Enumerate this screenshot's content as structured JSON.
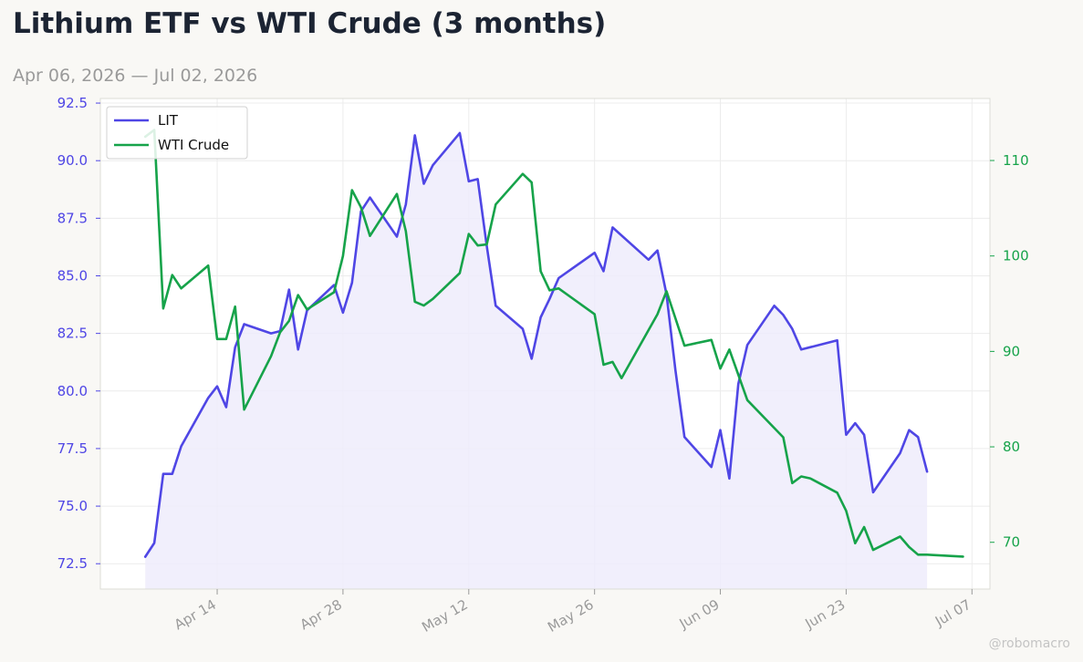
{
  "header": {
    "title": "Lithium ETF vs WTI Crude (3 months)",
    "subtitle": "Apr 06, 2026 — Jul 02, 2026"
  },
  "watermark": "@robomacro",
  "colors": {
    "lit": "#4f46e5",
    "lit_fill": "#eeecfc",
    "wti": "#16a34a",
    "background": "#f9f8f5",
    "plot_background": "#ffffff"
  },
  "chart_data": {
    "type": "line",
    "title": "Lithium ETF vs WTI Crude (3 months)",
    "subtitle": "Apr 06, 2026 — Jul 02, 2026",
    "grid": true,
    "legend_position": "top-left",
    "x_range": [
      "2026-04-01",
      "2026-07-09"
    ],
    "x_ticks": [
      "2026-04-14",
      "2026-04-28",
      "2026-05-12",
      "2026-05-26",
      "2026-06-09",
      "2026-06-23",
      "2026-07-07"
    ],
    "x_tick_labels": [
      "Apr 14",
      "Apr 28",
      "May 12",
      "May 26",
      "Jun 09",
      "Jun 23",
      "Jul 07"
    ],
    "y_left": {
      "range": [
        71.4,
        92.7
      ],
      "ticks": [
        72.5,
        75.0,
        77.5,
        80.0,
        82.5,
        85.0,
        87.5,
        90.0,
        92.5
      ],
      "tick_labels": [
        "72.5",
        "75.0",
        "77.5",
        "80.0",
        "82.5",
        "85.0",
        "87.5",
        "90.0",
        "92.5"
      ]
    },
    "y_right": {
      "range": [
        65.1,
        116.5
      ],
      "ticks": [
        70,
        80,
        90,
        100,
        110
      ],
      "tick_labels": [
        "70",
        "80",
        "90",
        "100",
        "110"
      ]
    },
    "series": [
      {
        "name": "LIT",
        "axis": "left",
        "color": "#4f46e5",
        "fill": true,
        "points": [
          [
            "2026-04-06",
            72.8
          ],
          [
            "2026-04-07",
            73.4
          ],
          [
            "2026-04-08",
            76.4
          ],
          [
            "2026-04-09",
            76.4
          ],
          [
            "2026-04-10",
            77.6
          ],
          [
            "2026-04-13",
            79.7
          ],
          [
            "2026-04-14",
            80.2
          ],
          [
            "2026-04-15",
            79.3
          ],
          [
            "2026-04-16",
            81.9
          ],
          [
            "2026-04-17",
            82.9
          ],
          [
            "2026-04-20",
            82.5
          ],
          [
            "2026-04-21",
            82.6
          ],
          [
            "2026-04-22",
            84.4
          ],
          [
            "2026-04-23",
            81.8
          ],
          [
            "2026-04-24",
            83.5
          ],
          [
            "2026-04-27",
            84.6
          ],
          [
            "2026-04-28",
            83.4
          ],
          [
            "2026-04-29",
            84.7
          ],
          [
            "2026-04-30",
            87.8
          ],
          [
            "2026-05-01",
            88.4
          ],
          [
            "2026-05-04",
            86.7
          ],
          [
            "2026-05-05",
            88.1
          ],
          [
            "2026-05-06",
            91.1
          ],
          [
            "2026-05-07",
            89.0
          ],
          [
            "2026-05-08",
            89.8
          ],
          [
            "2026-05-11",
            91.2
          ],
          [
            "2026-05-12",
            89.1
          ],
          [
            "2026-05-13",
            89.2
          ],
          [
            "2026-05-14",
            86.3
          ],
          [
            "2026-05-15",
            83.7
          ],
          [
            "2026-05-18",
            82.7
          ],
          [
            "2026-05-19",
            81.4
          ],
          [
            "2026-05-20",
            83.2
          ],
          [
            "2026-05-21",
            84.0
          ],
          [
            "2026-05-22",
            84.9
          ],
          [
            "2026-05-26",
            86.0
          ],
          [
            "2026-05-27",
            85.2
          ],
          [
            "2026-05-28",
            87.1
          ],
          [
            "2026-06-01",
            85.7
          ],
          [
            "2026-06-02",
            86.1
          ],
          [
            "2026-06-03",
            84.2
          ],
          [
            "2026-06-04",
            80.9
          ],
          [
            "2026-06-05",
            78.0
          ],
          [
            "2026-06-08",
            76.7
          ],
          [
            "2026-06-09",
            78.3
          ],
          [
            "2026-06-10",
            76.2
          ],
          [
            "2026-06-11",
            80.3
          ],
          [
            "2026-06-12",
            82.0
          ],
          [
            "2026-06-15",
            83.7
          ],
          [
            "2026-06-16",
            83.3
          ],
          [
            "2026-06-17",
            82.7
          ],
          [
            "2026-06-18",
            81.8
          ],
          [
            "2026-06-22",
            82.2
          ],
          [
            "2026-06-23",
            78.1
          ],
          [
            "2026-06-24",
            78.6
          ],
          [
            "2026-06-25",
            78.1
          ],
          [
            "2026-06-26",
            75.6
          ],
          [
            "2026-06-29",
            77.3
          ],
          [
            "2026-06-30",
            78.3
          ],
          [
            "2026-07-01",
            78.0
          ],
          [
            "2026-07-02",
            76.5
          ]
        ]
      },
      {
        "name": "WTI Crude",
        "axis": "right",
        "color": "#16a34a",
        "fill": false,
        "points": [
          [
            "2026-04-06",
            112.5
          ],
          [
            "2026-04-07",
            113.2
          ],
          [
            "2026-04-08",
            94.5
          ],
          [
            "2026-04-09",
            98.0
          ],
          [
            "2026-04-10",
            96.6
          ],
          [
            "2026-04-13",
            99.0
          ],
          [
            "2026-04-14",
            91.3
          ],
          [
            "2026-04-15",
            91.3
          ],
          [
            "2026-04-16",
            94.7
          ],
          [
            "2026-04-17",
            83.9
          ],
          [
            "2026-04-20",
            89.5
          ],
          [
            "2026-04-21",
            92.0
          ],
          [
            "2026-04-22",
            93.2
          ],
          [
            "2026-04-23",
            95.9
          ],
          [
            "2026-04-24",
            94.4
          ],
          [
            "2026-04-27",
            96.2
          ],
          [
            "2026-04-28",
            100.0
          ],
          [
            "2026-04-29",
            106.9
          ],
          [
            "2026-04-30",
            105.1
          ],
          [
            "2026-05-01",
            102.1
          ],
          [
            "2026-05-04",
            106.5
          ],
          [
            "2026-05-05",
            102.6
          ],
          [
            "2026-05-06",
            95.2
          ],
          [
            "2026-05-07",
            94.8
          ],
          [
            "2026-05-08",
            95.5
          ],
          [
            "2026-05-11",
            98.2
          ],
          [
            "2026-05-12",
            102.3
          ],
          [
            "2026-05-13",
            101.1
          ],
          [
            "2026-05-14",
            101.2
          ],
          [
            "2026-05-15",
            105.4
          ],
          [
            "2026-05-18",
            108.6
          ],
          [
            "2026-05-19",
            107.7
          ],
          [
            "2026-05-20",
            98.4
          ],
          [
            "2026-05-21",
            96.4
          ],
          [
            "2026-05-22",
            96.6
          ],
          [
            "2026-05-26",
            93.9
          ],
          [
            "2026-05-27",
            88.6
          ],
          [
            "2026-05-28",
            88.9
          ],
          [
            "2026-05-29",
            87.2
          ],
          [
            "2026-06-02",
            93.9
          ],
          [
            "2026-06-03",
            96.3
          ],
          [
            "2026-06-05",
            90.6
          ],
          [
            "2026-06-08",
            91.2
          ],
          [
            "2026-06-09",
            88.2
          ],
          [
            "2026-06-10",
            90.2
          ],
          [
            "2026-06-12",
            84.9
          ],
          [
            "2026-06-16",
            81.0
          ],
          [
            "2026-06-17",
            76.2
          ],
          [
            "2026-06-18",
            76.9
          ],
          [
            "2026-06-19",
            76.7
          ],
          [
            "2026-06-22",
            75.2
          ],
          [
            "2026-06-23",
            73.3
          ],
          [
            "2026-06-24",
            69.9
          ],
          [
            "2026-06-25",
            71.6
          ],
          [
            "2026-06-26",
            69.2
          ],
          [
            "2026-06-29",
            70.6
          ],
          [
            "2026-06-30",
            69.5
          ],
          [
            "2026-07-01",
            68.7
          ],
          [
            "2026-07-02",
            68.7
          ],
          [
            "2026-07-06",
            68.5
          ]
        ]
      }
    ]
  }
}
